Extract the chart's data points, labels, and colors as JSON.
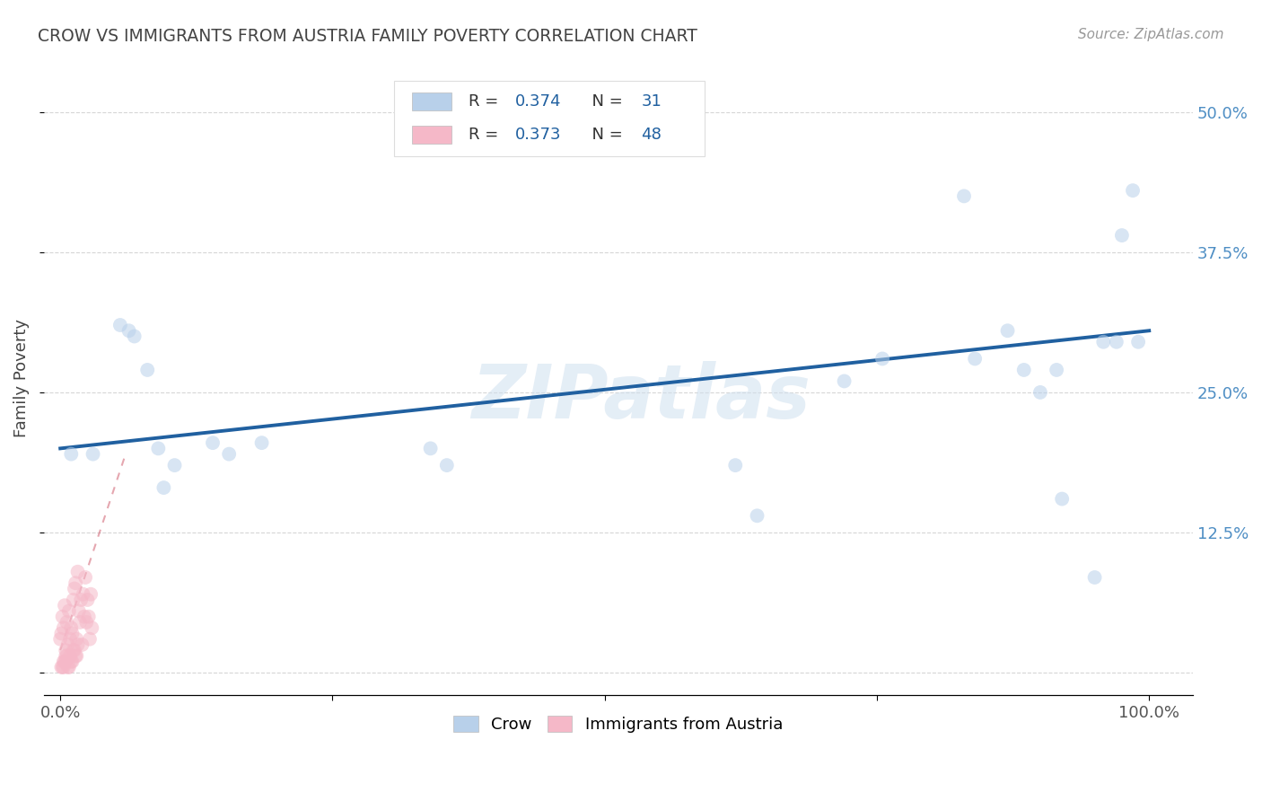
{
  "title": "CROW VS IMMIGRANTS FROM AUSTRIA FAMILY POVERTY CORRELATION CHART",
  "source": "Source: ZipAtlas.com",
  "ylabel": "Family Poverty",
  "watermark": "ZIPatlas",
  "blue_label": "Crow",
  "pink_label": "Immigrants from Austria",
  "blue_R": "0.374",
  "blue_N": "31",
  "pink_R": "0.373",
  "pink_N": "48",
  "blue_scatter_x": [
    0.01,
    0.03,
    0.055,
    0.063,
    0.068,
    0.08,
    0.09,
    0.095,
    0.105,
    0.14,
    0.155,
    0.185,
    0.34,
    0.355,
    0.62,
    0.64,
    0.72,
    0.755,
    0.83,
    0.84,
    0.87,
    0.885,
    0.9,
    0.915,
    0.92,
    0.95,
    0.958,
    0.97,
    0.975,
    0.985,
    0.99
  ],
  "blue_scatter_y": [
    0.195,
    0.195,
    0.31,
    0.305,
    0.3,
    0.27,
    0.2,
    0.165,
    0.185,
    0.205,
    0.195,
    0.205,
    0.2,
    0.185,
    0.185,
    0.14,
    0.26,
    0.28,
    0.425,
    0.28,
    0.305,
    0.27,
    0.25,
    0.27,
    0.155,
    0.085,
    0.295,
    0.295,
    0.39,
    0.43,
    0.295
  ],
  "pink_scatter_x": [
    0.0,
    0.001,
    0.002,
    0.003,
    0.004,
    0.005,
    0.006,
    0.007,
    0.008,
    0.009,
    0.01,
    0.011,
    0.012,
    0.013,
    0.014,
    0.015,
    0.016,
    0.017,
    0.018,
    0.019,
    0.02,
    0.021,
    0.022,
    0.023,
    0.024,
    0.025,
    0.026,
    0.027,
    0.028,
    0.029,
    0.002,
    0.004,
    0.006,
    0.008,
    0.01,
    0.012,
    0.014,
    0.016,
    0.003,
    0.005,
    0.007,
    0.009,
    0.011,
    0.013,
    0.015,
    0.001,
    0.003,
    0.005
  ],
  "pink_scatter_y": [
    0.03,
    0.035,
    0.05,
    0.04,
    0.06,
    0.02,
    0.045,
    0.025,
    0.055,
    0.03,
    0.04,
    0.035,
    0.065,
    0.075,
    0.08,
    0.03,
    0.09,
    0.055,
    0.045,
    0.065,
    0.025,
    0.07,
    0.05,
    0.085,
    0.045,
    0.065,
    0.05,
    0.03,
    0.07,
    0.04,
    0.005,
    0.01,
    0.015,
    0.005,
    0.01,
    0.02,
    0.015,
    0.025,
    0.005,
    0.01,
    0.005,
    0.015,
    0.01,
    0.02,
    0.015,
    0.005,
    0.01,
    0.015
  ],
  "blue_trend_x0": 0.0,
  "blue_trend_x1": 1.0,
  "blue_trend_y0": 0.2,
  "blue_trend_y1": 0.305,
  "pink_trend_x0": 0.0,
  "pink_trend_x1": 0.06,
  "pink_trend_y0": 0.02,
  "pink_trend_y1": 0.195,
  "xlim": [
    -0.015,
    1.04
  ],
  "ylim": [
    -0.02,
    0.545
  ],
  "yticks": [
    0.0,
    0.125,
    0.25,
    0.375,
    0.5
  ],
  "xticks": [
    0.0,
    0.25,
    0.5,
    0.75,
    1.0
  ],
  "scatter_size": 130,
  "scatter_alpha": 0.55,
  "blue_color": "#b8d0ea",
  "pink_color": "#f5b8c8",
  "blue_line_color": "#2060a0",
  "pink_line_color": "#d06070",
  "grid_color": "#cccccc",
  "background_color": "#ffffff",
  "title_color": "#444444",
  "source_color": "#999999",
  "watermark_color": "#cfe0ef",
  "right_tick_color": "#4e8ec4",
  "legend_text_color": "#2060a0"
}
